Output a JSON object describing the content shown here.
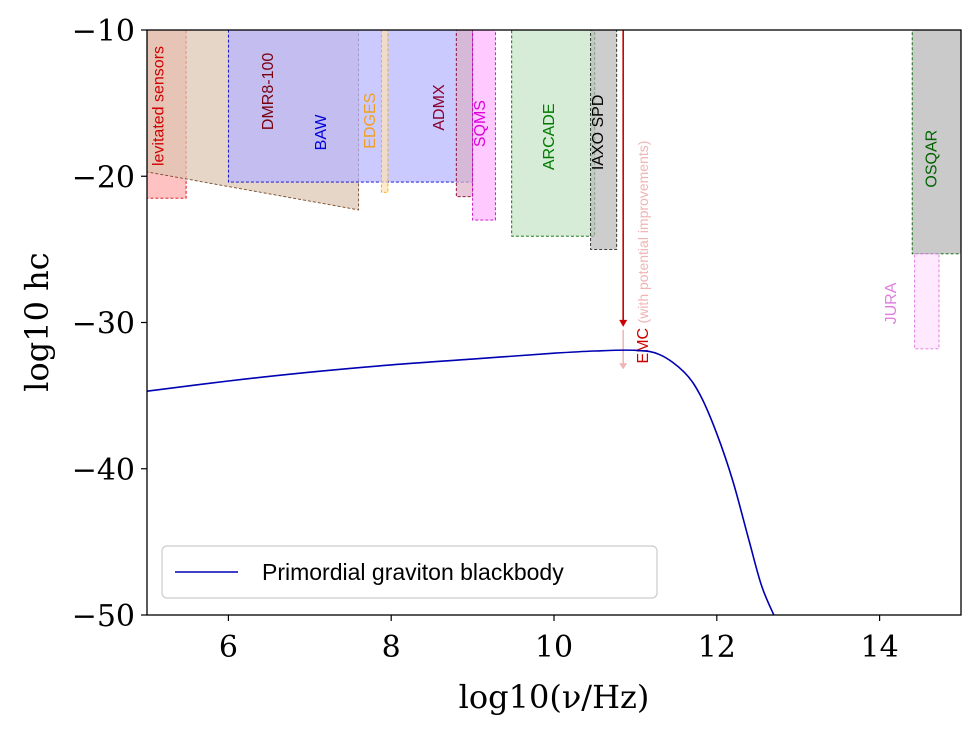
{
  "chart_data": {
    "type": "area",
    "xlabel": "log10(ν/Hz)",
    "ylabel": "log10 hc",
    "xlim": [
      5,
      15
    ],
    "ylim": [
      -50,
      -10
    ],
    "xticks": [
      6,
      8,
      10,
      12,
      14
    ],
    "xtick_labels": [
      "6",
      "8",
      "10",
      "12",
      "14"
    ],
    "yticks": [
      -10,
      -20,
      -30,
      -40,
      -50
    ],
    "ytick_labels": [
      "−10",
      "−20",
      "−30",
      "−40",
      "−50"
    ],
    "grid": false,
    "series": [
      {
        "name": "Primordial graviton blackbody",
        "color": "#0000b3",
        "x": [
          5.0,
          6.0,
          7.0,
          8.0,
          9.0,
          10.0,
          10.5,
          11.0,
          11.3,
          11.6,
          11.8,
          12.0,
          12.2,
          12.4,
          12.55,
          12.7
        ],
        "y": [
          -34.7,
          -34.0,
          -33.4,
          -32.9,
          -32.5,
          -32.1,
          -31.95,
          -31.9,
          -32.2,
          -33.4,
          -35.0,
          -37.6,
          -40.9,
          -45.0,
          -48.0,
          -50.0
        ]
      }
    ],
    "legend": {
      "position": "bottom-left",
      "entries": [
        "Primordial graviton blackbody"
      ]
    },
    "experiments": [
      {
        "name": "levitated sensors",
        "fill": "#ffa8a8",
        "edge": "#e00000",
        "label_color": "#d00000",
        "polygon": [
          [
            5.0,
            -10
          ],
          [
            5.48,
            -10
          ],
          [
            5.48,
            -21.5
          ],
          [
            5.0,
            -21.5
          ]
        ],
        "label_x": 5.2,
        "label_y": -15.2
      },
      {
        "name": "DMR8-100",
        "fill": "#dcc4b0",
        "edge": "#7a4a2a",
        "label_color": "#7a0010",
        "polygon": [
          [
            5.0,
            -10
          ],
          [
            7.6,
            -10
          ],
          [
            7.6,
            -22.3
          ],
          [
            5.0,
            -19.7
          ]
        ],
        "label_x": 6.55,
        "label_y": -14.2
      },
      {
        "name": "BAW",
        "fill": "#b4b4ff",
        "edge": "#0000cc",
        "label_color": "#0000dd",
        "polygon": [
          [
            6.0,
            -10
          ],
          [
            9.0,
            -10
          ],
          [
            9.0,
            -20.4
          ],
          [
            6.0,
            -20.4
          ]
        ],
        "label_x": 7.2,
        "label_y": -17.0
      },
      {
        "name": "EDGES",
        "fill": "#ffe2b0",
        "edge": "#ffa500",
        "label_color": "#f0a020",
        "polygon": [
          [
            7.88,
            -10
          ],
          [
            7.96,
            -10
          ],
          [
            7.96,
            -21.1
          ],
          [
            7.88,
            -21.1
          ]
        ],
        "label_x": 7.8,
        "label_y": -16.2
      },
      {
        "name": "ADMX",
        "fill": "#dcb0c8",
        "edge": "#8b0030",
        "label_color": "#8b0030",
        "polygon": [
          [
            8.8,
            -10
          ],
          [
            9.0,
            -10
          ],
          [
            9.0,
            -21.4
          ],
          [
            8.8,
            -21.4
          ]
        ],
        "label_x": 8.65,
        "label_y": -15.3
      },
      {
        "name": "SQMS",
        "fill": "#ffb4ff",
        "edge": "#cc00cc",
        "label_color": "#dd00dd",
        "polygon": [
          [
            9.0,
            -10
          ],
          [
            9.28,
            -10
          ],
          [
            9.28,
            -23.0
          ],
          [
            9.0,
            -23.0
          ]
        ],
        "label_x": 9.15,
        "label_y": -16.4
      },
      {
        "name": "ARCADE",
        "fill": "#c4e4c4",
        "edge": "#006400",
        "label_color": "#007a00",
        "polygon": [
          [
            9.48,
            -10
          ],
          [
            10.5,
            -10
          ],
          [
            10.5,
            -24.1
          ],
          [
            9.48,
            -24.1
          ]
        ],
        "label_x": 10.0,
        "label_y": -17.3
      },
      {
        "name": "IAXO SPD",
        "fill": "#b8b8b8",
        "edge": "#202020",
        "label_color": "#000000",
        "polygon": [
          [
            10.45,
            -10
          ],
          [
            10.77,
            -10
          ],
          [
            10.77,
            -25.0
          ],
          [
            10.45,
            -25.0
          ]
        ],
        "label_x": 10.6,
        "label_y": -17.0
      },
      {
        "name": "OSQAR",
        "fill": "#b4b4b4",
        "edge": "#006400",
        "label_color": "#006400",
        "polygon": [
          [
            14.4,
            -10
          ],
          [
            15.0,
            -10
          ],
          [
            15.0,
            -25.3
          ],
          [
            14.4,
            -25.3
          ]
        ],
        "label_x": 14.7,
        "label_y": -18.8
      },
      {
        "name": "JURA",
        "fill": "#ffe0ff",
        "edge": "#dd77dd",
        "label_color": "#e080e0",
        "polygon": [
          [
            14.43,
            -25.3
          ],
          [
            14.73,
            -25.3
          ],
          [
            14.73,
            -31.8
          ],
          [
            14.43,
            -31.8
          ]
        ],
        "label_x": 14.2,
        "label_y": -28.7
      }
    ],
    "emc": {
      "label": "EMC",
      "note": "(with potential improvements)",
      "x": 10.85,
      "arrow_top": -10,
      "arrow_end": -30.3,
      "improved_end": -33.2,
      "color": "#cc0000",
      "note_color": "#f0b4b4"
    }
  }
}
